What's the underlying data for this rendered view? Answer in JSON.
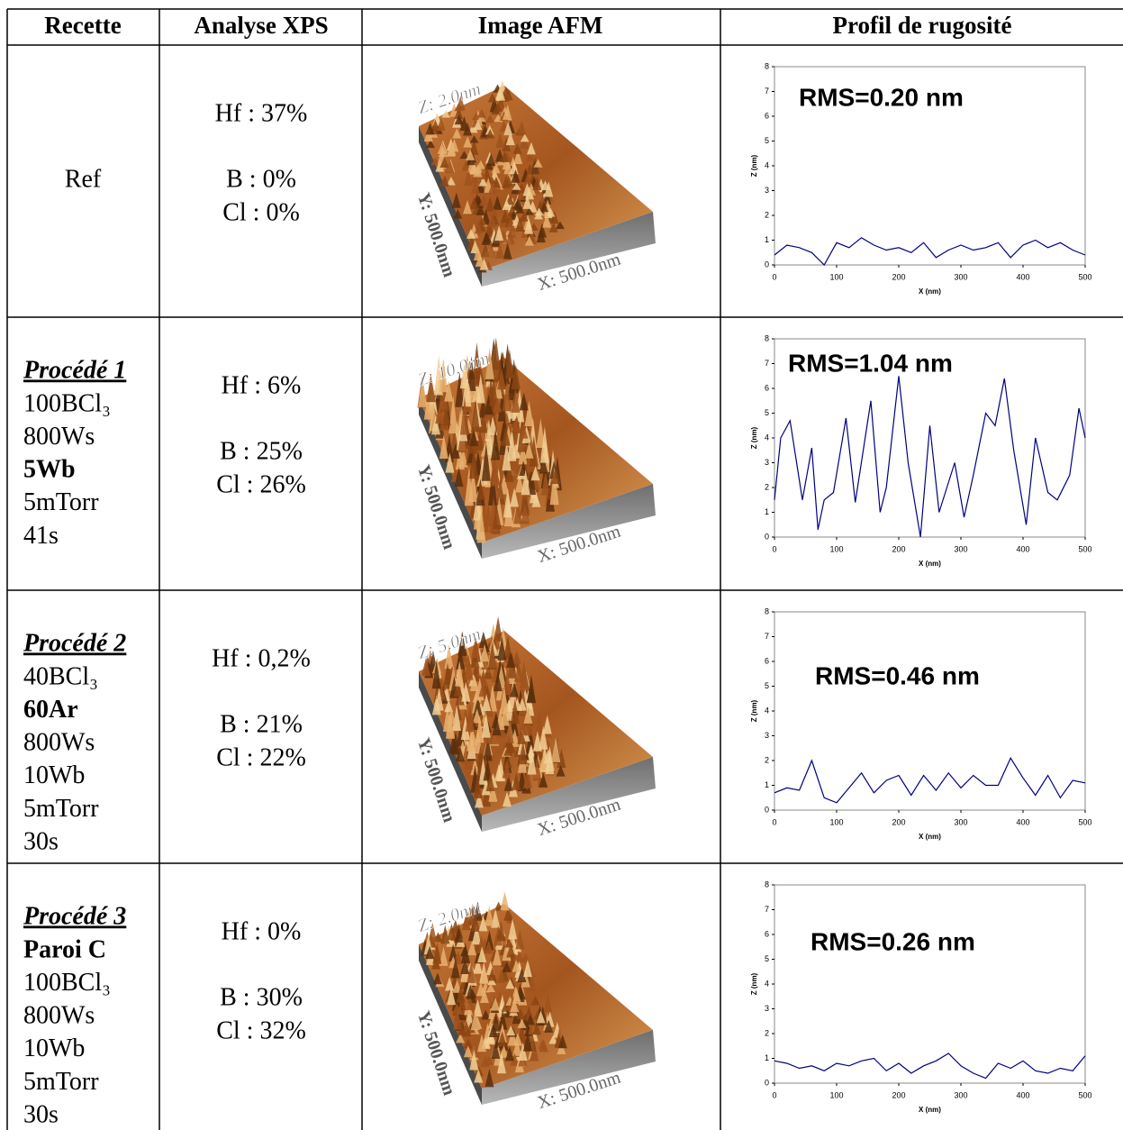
{
  "table": {
    "headers": [
      "Recette",
      "Analyse XPS",
      "Image AFM",
      "Profil de rugosité"
    ],
    "rows": [
      {
        "recipe": {
          "lines": [
            {
              "text": "Ref"
            }
          ]
        },
        "xps": [
          "Hf : 37%",
          "B : 0%",
          "Cl : 0%"
        ],
        "afm": {
          "z": "Z: 2.0nm",
          "y": "Y: 500.0nm",
          "x": "X: 500.0nm"
        },
        "profile": {
          "type": "line",
          "annotation": "RMS=0.20 nm",
          "xlabel": "X (nm)",
          "ylabel": "Z (nm)",
          "xlim": [
            0,
            500
          ],
          "ylim": [
            0,
            8
          ],
          "xticks": [
            0,
            100,
            200,
            300,
            400,
            500
          ],
          "yticks": [
            0,
            1,
            2,
            3,
            4,
            5,
            6,
            7,
            8
          ],
          "color": "#000080",
          "x": [
            0,
            20,
            40,
            60,
            80,
            100,
            120,
            140,
            160,
            180,
            200,
            220,
            240,
            260,
            280,
            300,
            320,
            340,
            360,
            380,
            400,
            420,
            440,
            460,
            480,
            500
          ],
          "values": [
            0.4,
            0.8,
            0.7,
            0.5,
            0.0,
            0.9,
            0.7,
            1.1,
            0.8,
            0.6,
            0.7,
            0.5,
            0.9,
            0.3,
            0.6,
            0.8,
            0.6,
            0.7,
            0.9,
            0.3,
            0.8,
            1.0,
            0.7,
            0.9,
            0.6,
            0.4
          ]
        }
      },
      {
        "recipe": {
          "title": "Procédé 1",
          "lines": [
            {
              "text": "100BCl₃"
            },
            {
              "text": "800Ws"
            },
            {
              "text": "5Wb",
              "bold": true
            },
            {
              "text": "5mTorr"
            },
            {
              "text": "41s"
            }
          ]
        },
        "xps": [
          "Hf : 6%",
          "B : 25%",
          "Cl : 26%"
        ],
        "afm": {
          "z": "Z: 10.0nm",
          "y": "Y: 500.0nm",
          "x": "X: 500.0nm"
        },
        "profile": {
          "type": "line",
          "annotation": "RMS=1.04 nm",
          "xlabel": "X (nm)",
          "ylabel": "Z (nm)",
          "xlim": [
            0,
            500
          ],
          "ylim": [
            0,
            8
          ],
          "xticks": [
            0,
            100,
            200,
            300,
            400,
            500
          ],
          "yticks": [
            0,
            1,
            2,
            3,
            4,
            5,
            6,
            7,
            8
          ],
          "color": "#000080",
          "x": [
            0,
            10,
            25,
            45,
            60,
            70,
            80,
            95,
            115,
            130,
            155,
            170,
            180,
            200,
            215,
            235,
            250,
            265,
            290,
            305,
            320,
            340,
            355,
            370,
            385,
            405,
            420,
            440,
            455,
            475,
            490,
            500
          ],
          "values": [
            1.5,
            4.0,
            4.7,
            1.5,
            3.6,
            0.3,
            1.5,
            1.8,
            4.8,
            1.4,
            5.5,
            1.0,
            2.0,
            6.5,
            3.0,
            0.0,
            4.5,
            1.0,
            3.0,
            0.8,
            2.5,
            5.0,
            4.5,
            6.4,
            3.5,
            0.5,
            4.0,
            1.8,
            1.5,
            2.5,
            5.2,
            4.0
          ]
        }
      },
      {
        "recipe": {
          "title": "Procédé 2",
          "lines": [
            {
              "text": "40BCl₃"
            },
            {
              "text": "60Ar",
              "bold": true
            },
            {
              "text": "800Ws"
            },
            {
              "text": "10Wb"
            },
            {
              "text": "5mTorr"
            },
            {
              "text": "30s"
            }
          ]
        },
        "xps": [
          "Hf : 0,2%",
          "B : 21%",
          "Cl : 22%"
        ],
        "afm": {
          "z": "Z: 5.0nm",
          "y": "Y: 500.0nm",
          "x": "X: 500.0nm"
        },
        "profile": {
          "type": "line",
          "annotation": "RMS=0.46 nm",
          "xlabel": "X (nm)",
          "ylabel": "Z (nm)",
          "xlim": [
            0,
            500
          ],
          "ylim": [
            0,
            8
          ],
          "xticks": [
            0,
            100,
            200,
            300,
            400,
            500
          ],
          "yticks": [
            0,
            1,
            2,
            3,
            4,
            5,
            6,
            7,
            8
          ],
          "color": "#000080",
          "x": [
            0,
            20,
            40,
            60,
            80,
            100,
            120,
            140,
            160,
            180,
            200,
            220,
            240,
            260,
            280,
            300,
            320,
            340,
            360,
            380,
            400,
            420,
            440,
            460,
            480,
            500
          ],
          "values": [
            0.7,
            0.9,
            0.8,
            2.0,
            0.5,
            0.3,
            0.9,
            1.5,
            0.7,
            1.2,
            1.4,
            0.6,
            1.4,
            0.8,
            1.5,
            0.9,
            1.4,
            1.0,
            1.0,
            2.1,
            1.3,
            0.6,
            1.4,
            0.5,
            1.2,
            1.1
          ]
        }
      },
      {
        "recipe": {
          "title": "Procédé 3",
          "lines": [
            {
              "text": "Paroi C",
              "bold": true
            },
            {
              "text": "100BCl₃"
            },
            {
              "text": "800Ws"
            },
            {
              "text": "10Wb"
            },
            {
              "text": "5mTorr"
            },
            {
              "text": "30s"
            }
          ]
        },
        "xps": [
          "Hf : 0%",
          "B : 30%",
          "Cl : 32%"
        ],
        "afm": {
          "z": "Z: 2.0nm",
          "y": "Y: 500.0nm",
          "x": "X: 500.0nm"
        },
        "profile": {
          "type": "line",
          "annotation": "RMS=0.26 nm",
          "xlabel": "X (nm)",
          "ylabel": "Z (nm)",
          "xlim": [
            0,
            500
          ],
          "ylim": [
            0,
            8
          ],
          "xticks": [
            0,
            100,
            200,
            300,
            400,
            500
          ],
          "yticks": [
            0,
            1,
            2,
            3,
            4,
            5,
            6,
            7,
            8
          ],
          "color": "#000080",
          "x": [
            0,
            20,
            40,
            60,
            80,
            100,
            120,
            140,
            160,
            180,
            200,
            220,
            240,
            260,
            280,
            300,
            320,
            340,
            360,
            380,
            400,
            420,
            440,
            460,
            480,
            500
          ],
          "values": [
            0.9,
            0.8,
            0.6,
            0.7,
            0.5,
            0.8,
            0.7,
            0.9,
            1.0,
            0.5,
            0.8,
            0.4,
            0.7,
            0.9,
            1.2,
            0.7,
            0.4,
            0.2,
            0.8,
            0.6,
            0.9,
            0.5,
            0.4,
            0.6,
            0.5,
            1.1
          ]
        }
      }
    ]
  }
}
